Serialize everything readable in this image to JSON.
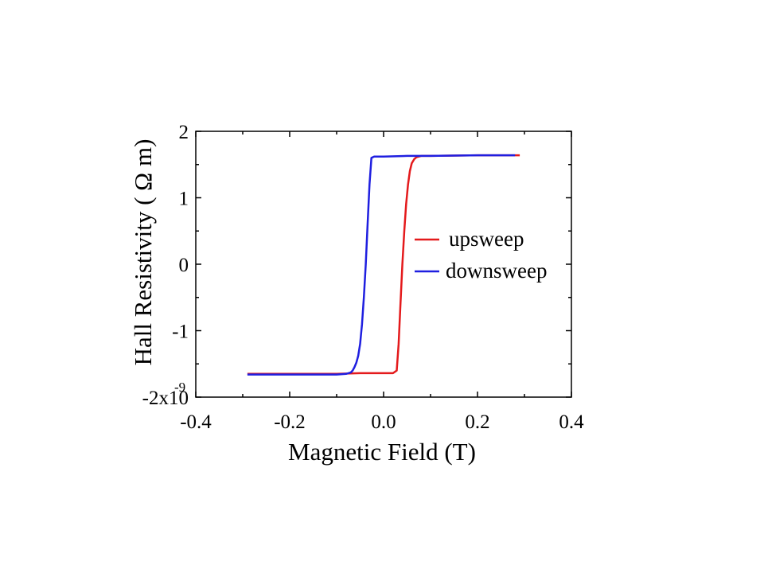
{
  "chart_data": {
    "type": "line",
    "xlabel": "Magnetic Field (T)",
    "ylabel": "Hall Resistivity ( Ω m)",
    "xlim": [
      -0.4,
      0.4
    ],
    "ylim": [
      -2e-09,
      2e-09
    ],
    "x_ticks": [
      -0.4,
      -0.2,
      0.0,
      0.2,
      0.4
    ],
    "x_tick_labels": [
      "-0.4",
      "-0.2",
      "0.0",
      "0.2",
      "0.4"
    ],
    "y_ticks": [
      -2e-09,
      -1e-09,
      0,
      1e-09,
      2e-09
    ],
    "y_tick_labels": [
      "-2x10",
      "-1",
      "0",
      "1",
      "2"
    ],
    "y_exponent_label": "-9",
    "grid": false,
    "legend_position": "right",
    "series": [
      {
        "name": "upsweep",
        "color": "#e41a1c",
        "x": [
          -0.29,
          -0.2,
          -0.1,
          -0.05,
          0.0,
          0.02,
          0.028,
          0.032,
          0.036,
          0.04,
          0.044,
          0.048,
          0.052,
          0.056,
          0.06,
          0.065,
          0.07,
          0.08,
          0.1,
          0.2,
          0.29
        ],
        "y": [
          -1.65e-09,
          -1.65e-09,
          -1.65e-09,
          -1.64e-09,
          -1.64e-09,
          -1.64e-09,
          -1.6e-09,
          -1.2e-09,
          -6e-10,
          0.0,
          5e-10,
          9e-10,
          1.2e-09,
          1.4e-09,
          1.52e-09,
          1.58e-09,
          1.61e-09,
          1.63e-09,
          1.63e-09,
          1.64e-09,
          1.64e-09
        ]
      },
      {
        "name": "downsweep",
        "color": "#1f1fe0",
        "x": [
          0.28,
          0.2,
          0.1,
          0.05,
          0.0,
          -0.02,
          -0.026,
          -0.03,
          -0.034,
          -0.038,
          -0.042,
          -0.046,
          -0.05,
          -0.054,
          -0.058,
          -0.062,
          -0.066,
          -0.07,
          -0.08,
          -0.1,
          -0.2,
          -0.29
        ],
        "y": [
          1.64e-09,
          1.64e-09,
          1.63e-09,
          1.63e-09,
          1.62e-09,
          1.62e-09,
          1.6e-09,
          1.2e-09,
          6e-10,
          0.0,
          -5e-10,
          -9e-10,
          -1.2e-09,
          -1.38e-09,
          -1.48e-09,
          -1.55e-09,
          -1.6e-09,
          -1.63e-09,
          -1.65e-09,
          -1.66e-09,
          -1.66e-09,
          -1.66e-09
        ]
      }
    ]
  }
}
